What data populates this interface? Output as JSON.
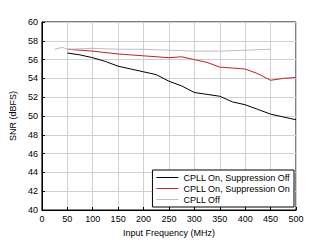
{
  "chart_data": {
    "type": "line",
    "x_label": "Input Frequency (MHz)",
    "y_label": "SNR (dBFS)",
    "xlim": [
      0,
      500
    ],
    "xticks": [
      0,
      50,
      100,
      150,
      200,
      250,
      300,
      350,
      400,
      450,
      500
    ],
    "ylim": [
      40,
      60
    ],
    "yticks": [
      40,
      42,
      44,
      46,
      48,
      50,
      52,
      54,
      56,
      58,
      60
    ],
    "grid": true,
    "legend": "lower right",
    "series": [
      {
        "name": "CPLL On, Suppression Off",
        "color": "#000000",
        "x": [
          50,
          75,
          100,
          125,
          150,
          175,
          200,
          225,
          250,
          275,
          300,
          325,
          350,
          375,
          400,
          425,
          450,
          475,
          500
        ],
        "values": [
          56.7,
          56.5,
          56.2,
          55.8,
          55.3,
          55.0,
          54.7,
          54.4,
          53.7,
          53.2,
          52.5,
          52.3,
          52.1,
          51.5,
          51.2,
          50.7,
          50.2,
          49.9,
          49.6
        ]
      },
      {
        "name": "CPLL On, Suppression On",
        "color": "#c0202a",
        "x": [
          50,
          75,
          100,
          150,
          200,
          250,
          275,
          300,
          325,
          350,
          375,
          400,
          425,
          450,
          475,
          500
        ],
        "values": [
          57.1,
          57.0,
          56.9,
          56.6,
          56.4,
          56.2,
          56.3,
          56.0,
          55.7,
          55.2,
          55.1,
          55.0,
          54.5,
          53.8,
          54.0,
          54.1
        ]
      },
      {
        "name": "CPLL Off",
        "color": "#bdbdbd",
        "x": [
          25,
          40,
          50,
          100,
          150,
          200,
          250,
          300,
          350,
          400,
          450
        ],
        "values": [
          57.1,
          57.3,
          57.1,
          57.2,
          57.1,
          57.1,
          57.0,
          56.9,
          56.9,
          57.0,
          57.1
        ]
      }
    ]
  }
}
